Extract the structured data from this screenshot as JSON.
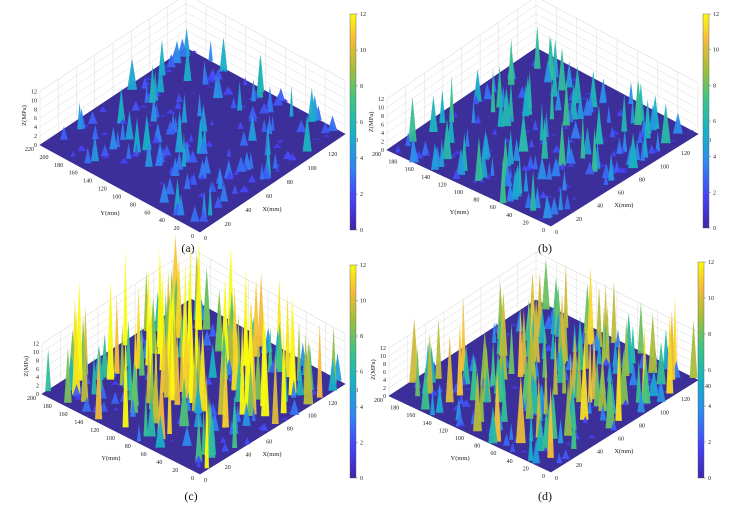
{
  "figure": {
    "panels": [
      {
        "caption": "(a)"
      },
      {
        "caption": "(b)"
      },
      {
        "caption": "(c)"
      },
      {
        "caption": "(d)"
      }
    ],
    "colormap": [
      "#3e26a8",
      "#4743f8",
      "#2f88f0",
      "#17b1c6",
      "#3ec385",
      "#a5be3a",
      "#f6ba3b",
      "#f9fb0e"
    ]
  },
  "chart_data": [
    {
      "type": "surface3d",
      "caption": "(a)",
      "xlabel": "X(mm)",
      "ylabel": "Y(mm)",
      "zlabel": "Z(MPa)",
      "x_ticks": [
        "0",
        "20",
        "40",
        "60",
        "80",
        "100",
        "120",
        "140"
      ],
      "y_ticks": [
        "0",
        "20",
        "40",
        "60",
        "80",
        "100",
        "120",
        "140",
        "160",
        "180",
        "200",
        "220"
      ],
      "z_ticks": [
        "0",
        "2",
        "4",
        "6",
        "8",
        "10",
        "12"
      ],
      "colorbar_ticks": [
        "0",
        "2",
        "4",
        "6",
        "8",
        "10",
        "12"
      ],
      "xlim": [
        0,
        140
      ],
      "ylim": [
        0,
        220
      ],
      "zlim": [
        0,
        12
      ],
      "peak_z": 4
    },
    {
      "type": "surface3d",
      "caption": "(b)",
      "xlabel": "X(mm)",
      "ylabel": "Y(mm)",
      "zlabel": "Z(MPa)",
      "x_ticks": [
        "0",
        "20",
        "40",
        "60",
        "80",
        "100",
        "120",
        "140"
      ],
      "y_ticks": [
        "0",
        "20",
        "40",
        "60",
        "80",
        "100",
        "120",
        "140",
        "160",
        "180",
        "200"
      ],
      "z_ticks": [
        "0",
        "2",
        "4",
        "6",
        "8",
        "10",
        "12"
      ],
      "colorbar_ticks": [
        "0",
        "2",
        "4",
        "6",
        "8",
        "10",
        "12"
      ],
      "xlim": [
        0,
        140
      ],
      "ylim": [
        0,
        200
      ],
      "zlim": [
        0,
        12
      ],
      "peak_z": 5
    },
    {
      "type": "surface3d",
      "caption": "(c)",
      "xlabel": "X(mm)",
      "ylabel": "Y(mm)",
      "zlabel": "Z(MPa)",
      "x_ticks": [
        "0",
        "20",
        "40",
        "60",
        "80",
        "100",
        "120",
        "140"
      ],
      "y_ticks": [
        "0",
        "20",
        "40",
        "60",
        "80",
        "100",
        "120",
        "140",
        "160",
        "180",
        "200"
      ],
      "z_ticks": [
        "0",
        "2",
        "4",
        "6",
        "8",
        "10",
        "12"
      ],
      "colorbar_ticks": [
        "0",
        "2",
        "4",
        "6",
        "8",
        "10",
        "12"
      ],
      "xlim": [
        0,
        140
      ],
      "ylim": [
        0,
        200
      ],
      "zlim": [
        0,
        12
      ],
      "peak_z": 11
    },
    {
      "type": "surface3d",
      "caption": "(d)",
      "xlabel": "X(mm)",
      "ylabel": "Y(mm)",
      "zlabel": "Z(MPa)",
      "x_ticks": [
        "0",
        "20",
        "40",
        "60",
        "80",
        "100",
        "120",
        "140"
      ],
      "y_ticks": [
        "0",
        "20",
        "40",
        "60",
        "80",
        "100",
        "120",
        "140",
        "160",
        "180",
        "200"
      ],
      "z_ticks": [
        "0",
        "2",
        "4",
        "6",
        "8",
        "10",
        "12"
      ],
      "colorbar_ticks": [
        "0",
        "2",
        "4",
        "6",
        "8",
        "10",
        "12"
      ],
      "xlim": [
        0,
        140
      ],
      "ylim": [
        0,
        200
      ],
      "zlim": [
        0,
        12
      ],
      "peak_z": 9
    }
  ]
}
